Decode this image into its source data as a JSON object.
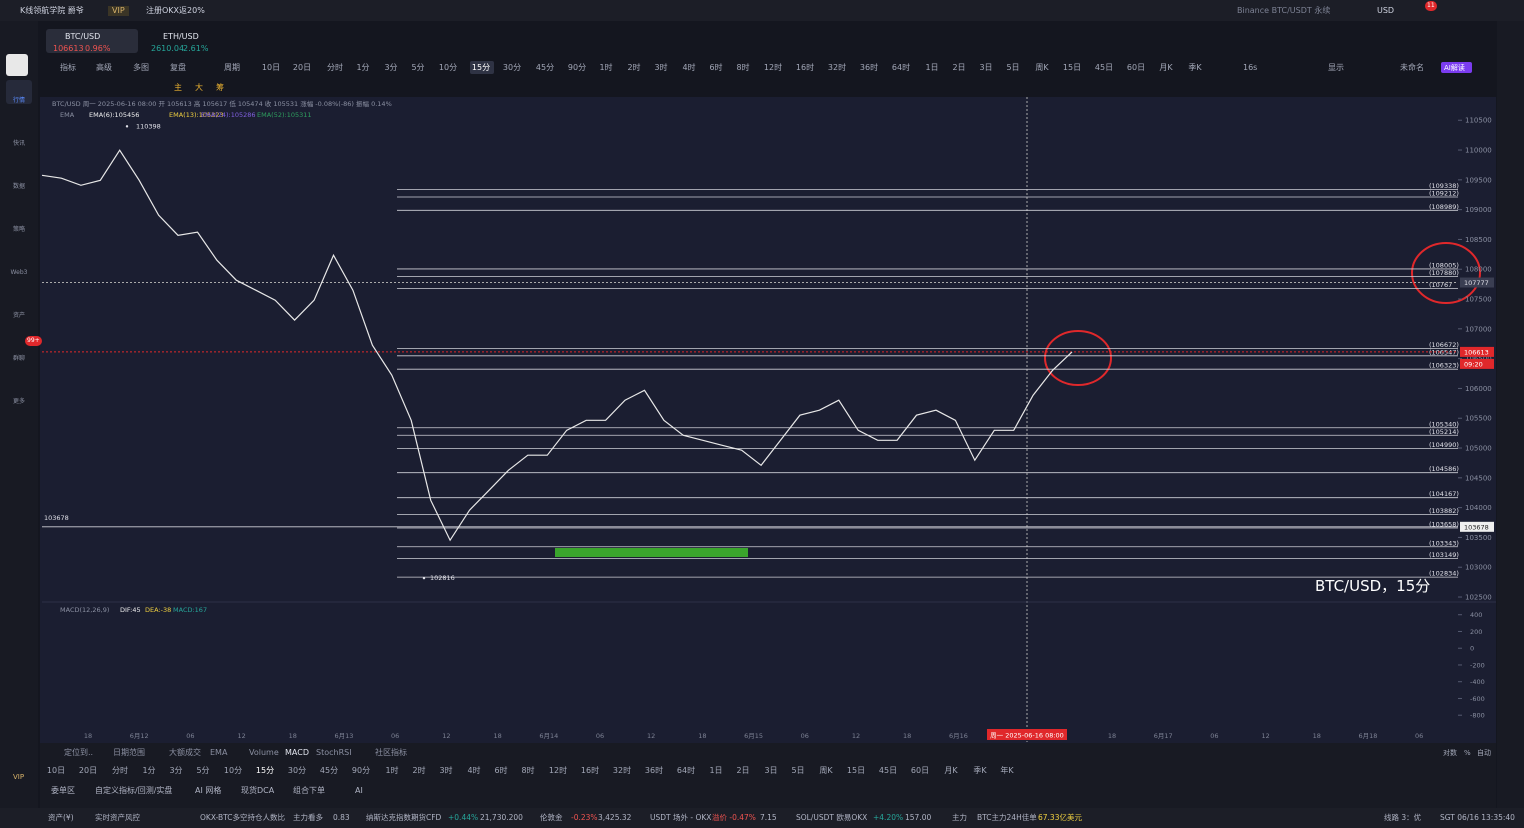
{
  "top_bar": {
    "app": "K线领航学院 爵爷",
    "badge": "VIP",
    "promo": "注册OKX返20%",
    "search": "Binance BTC/USDT 永续",
    "currency": "USD",
    "notice": "11"
  },
  "sidebar": {
    "items": [
      "行情",
      "快讯",
      "数据",
      "策略",
      "Web3",
      "资产",
      "群聊",
      "更多"
    ],
    "badge": "99+",
    "vip": "VIP"
  },
  "tabs": [
    {
      "symbol": "BTC/USD",
      "quote": "106613",
      "change": "0.96%"
    },
    {
      "symbol": "ETH/USD",
      "quote": "2610.04",
      "change": "2.61%"
    }
  ],
  "toolbar": {
    "left": [
      "指标",
      "高级",
      "多图",
      "复盘",
      "周期"
    ],
    "timeframes": [
      "10日",
      "20日",
      "分时",
      "1分",
      "3分",
      "5分",
      "10分",
      "15分",
      "30分",
      "45分",
      "90分",
      "1时",
      "2时",
      "3时",
      "4时",
      "6时",
      "8时",
      "12时",
      "16时",
      "32时",
      "36时",
      "64时",
      "1日",
      "2日",
      "3日",
      "5日",
      "周K",
      "15日",
      "45日",
      "60日",
      "月K",
      "季K"
    ],
    "selected": "15分",
    "right": [
      "16s",
      "显示",
      "未命名",
      "AI解读"
    ],
    "draw": [
      "主",
      "大",
      "筹"
    ]
  },
  "legend": {
    "ohlc": "BTC/USD 周一 2025-06-16 08:00 开 105613 高 105617 低 105474 收 105531 涨幅 -0.08%(-86) 振幅 0.14%",
    "ema": [
      "EMA",
      "EMA(6):105456",
      "EMA(13):105323",
      "EMA(24):105286",
      "EMA(52):105311"
    ]
  },
  "chart_data": {
    "type": "line",
    "title": "BTC/USD，15分",
    "color": "#e8e8e8",
    "values": [
      109577,
      109527,
      109409,
      109493,
      109997,
      109493,
      108906,
      108570,
      108621,
      108151,
      107816,
      107649,
      107481,
      107146,
      107481,
      108235,
      107649,
      106725,
      106222,
      105466,
      104124,
      103453,
      103956,
      104291,
      104627,
      104879,
      104879,
      105298,
      105466,
      105466,
      105802,
      105969,
      105466,
      105214,
      105130,
      105046,
      104963,
      104711,
      105130,
      105550,
      105634,
      105802,
      105298,
      105130,
      105130,
      105550,
      105634,
      105466,
      104795,
      105298,
      105298,
      105886,
      106305,
      106613
    ],
    "ylim": [
      102450,
      110890
    ],
    "yticks": [
      102500,
      103000,
      103500,
      104000,
      104500,
      105000,
      105500,
      106000,
      106500,
      107000,
      107500,
      108000,
      108500,
      109000,
      109500,
      110000,
      110500
    ],
    "levels": [
      {
        "value": 109338,
        "label": "(109338)"
      },
      {
        "value": 109212,
        "label": "(109212)"
      },
      {
        "value": 108989,
        "label": "(108989)"
      },
      {
        "value": 108005,
        "label": "(108005)"
      },
      {
        "value": 107880,
        "label": "(107880)"
      },
      {
        "value": 107677,
        "label": "(10767"
      },
      {
        "value": 106672,
        "label": "(106672)"
      },
      {
        "value": 106547,
        "label": "(106547)"
      },
      {
        "value": 106323,
        "label": "(106323)"
      },
      {
        "value": 105340,
        "label": "(105340)"
      },
      {
        "value": 105214,
        "label": "(105214)"
      },
      {
        "value": 104990,
        "label": "(104990)"
      },
      {
        "value": 104586,
        "label": "(104586)"
      },
      {
        "value": 104167,
        "label": "(104167)"
      },
      {
        "value": 103882,
        "label": "(103882)"
      },
      {
        "value": 103658,
        "label": "(103658)"
      },
      {
        "value": 103343,
        "label": "(103343)"
      },
      {
        "value": 103149,
        "label": "(103149)"
      },
      {
        "value": 102834,
        "label": "(102834)"
      }
    ],
    "high": 110398,
    "low": 102816,
    "left_level": 103678,
    "last_price": 106613,
    "countdown": "09:20",
    "crosshair_price": 107777,
    "right_tag": 103678,
    "time_labels": [
      "18",
      "6月12",
      "06",
      "12",
      "18",
      "6月13",
      "06",
      "12",
      "18",
      "6月14",
      "06",
      "12",
      "18",
      "6月15",
      "06",
      "12",
      "18",
      "6月16",
      "18",
      "6月17",
      "06",
      "12",
      "18",
      "6月18",
      "06"
    ],
    "crosshair_time": "周一 2025-06-16 08:00",
    "macd": {
      "label": "MACD(12,26,9)",
      "dif": "DIF:45",
      "dea": "DEA:-38",
      "macd": "MACD:167",
      "ylim": [
        -1120,
        540
      ],
      "yticks": [
        400,
        200,
        0,
        -200,
        -400,
        -600,
        -800
      ]
    }
  },
  "bottom": {
    "tabs": [
      "定位到..",
      "日期范围",
      "大额成交",
      "EMA",
      "Volume",
      "MACD",
      "StochRSI",
      "社区指标"
    ],
    "timeframes": [
      "10日",
      "20日",
      "分时",
      "1分",
      "3分",
      "5分",
      "10分",
      "15分",
      "30分",
      "45分",
      "90分",
      "1时",
      "2时",
      "3时",
      "4时",
      "6时",
      "8时",
      "12时",
      "16时",
      "32时",
      "36时",
      "64时",
      "1日",
      "2日",
      "3日",
      "5日",
      "周K",
      "15日",
      "45日",
      "60日",
      "月K",
      "季K",
      "年K"
    ],
    "right": [
      "对数",
      "%",
      "自动"
    ],
    "tools": [
      "委单区",
      "自定义指标/回测/实盘",
      "AI 网格",
      "现货DCA",
      "组合下单",
      "AI"
    ],
    "ticker": [
      "资产(¥)",
      "实时资产风控",
      "OKX-BTC多空持仓人数比",
      "主力看多",
      "0.83",
      "纳斯达克指数期货CFD",
      "+0.44%",
      "21,730.200",
      "伦敦金",
      "-0.23%",
      "3,425.32",
      "USDT 场外 - OKX",
      "溢价 -0.47%",
      "7.15",
      "SOL/USDT 欧易OKX",
      "+4.20%",
      "157.00",
      "主力",
      "BTC主力24H佳单",
      "67.33亿美元",
      "线路 3：优",
      "SGT 06/16 13:35:40"
    ]
  }
}
